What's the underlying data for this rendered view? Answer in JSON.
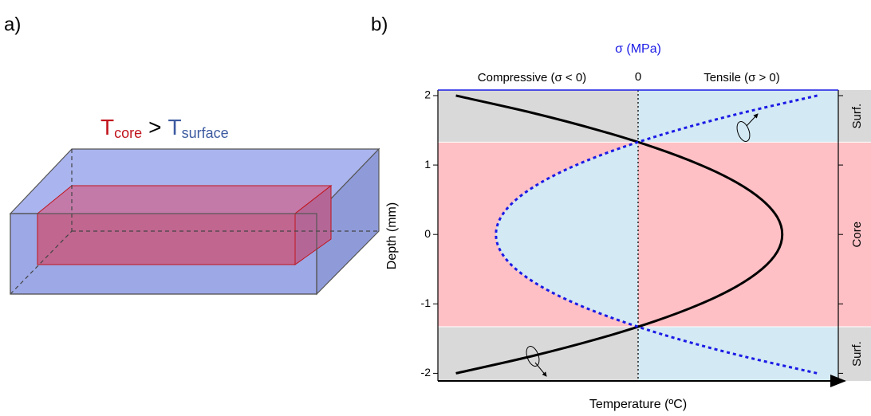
{
  "panel_a": {
    "label": "a)",
    "heading": {
      "core_symbol": "T",
      "core_sub": "core",
      "relation": ">",
      "surface_symbol": "T",
      "surface_sub": "surface",
      "core_color": "#c0141c",
      "surface_color": "#3c5aa0"
    }
  },
  "chart_data": {
    "type": "line",
    "label": "b)",
    "title": "σ (MPa)",
    "compressive_label": "Compressive (σ < 0)",
    "tensile_label": "Tensile (σ > 0)",
    "y_label": "Depth (mm)",
    "x_label": "Temperature (ºC)",
    "depth": [
      2,
      1.75,
      1.5,
      1.25,
      1,
      0.75,
      0.5,
      0.25,
      0,
      -0.25,
      -0.5,
      -0.75,
      -1,
      -1.25,
      -1.5,
      -1.75,
      -2
    ],
    "series": [
      {
        "color": "#000000",
        "dash": false,
        "values": [
          -0.91,
          -0.526,
          -0.196,
          0.084,
          0.313,
          0.491,
          0.618,
          0.695,
          0.72,
          0.695,
          0.618,
          0.491,
          0.313,
          0.084,
          -0.196,
          -0.526,
          -0.91
        ]
      },
      {
        "color": "#1a1ae6",
        "dash": true,
        "values": [
          0.895,
          0.518,
          0.192,
          -0.083,
          -0.309,
          -0.484,
          -0.61,
          -0.685,
          -0.71,
          -0.685,
          -0.61,
          -0.484,
          -0.309,
          -0.083,
          0.192,
          0.518,
          0.895
        ]
      }
    ],
    "regions": [
      {
        "label": "Surf.",
        "range": [
          1.33,
          2.08
        ],
        "color": "#d9d9d9"
      },
      {
        "label": "Core",
        "range": [
          -1.33,
          1.33
        ],
        "color": "#ffc0c5"
      },
      {
        "label": "Surf.",
        "range": [
          -2.11,
          -1.33
        ],
        "color": "#d9d9d9"
      }
    ],
    "tensile_fill": "#d3e9f3",
    "xlim": [
      -1,
      1
    ],
    "xticks": [
      0
    ],
    "ylim": [
      -2.11,
      2.08
    ],
    "yticks": [
      -2,
      -1,
      0,
      1,
      2
    ]
  }
}
